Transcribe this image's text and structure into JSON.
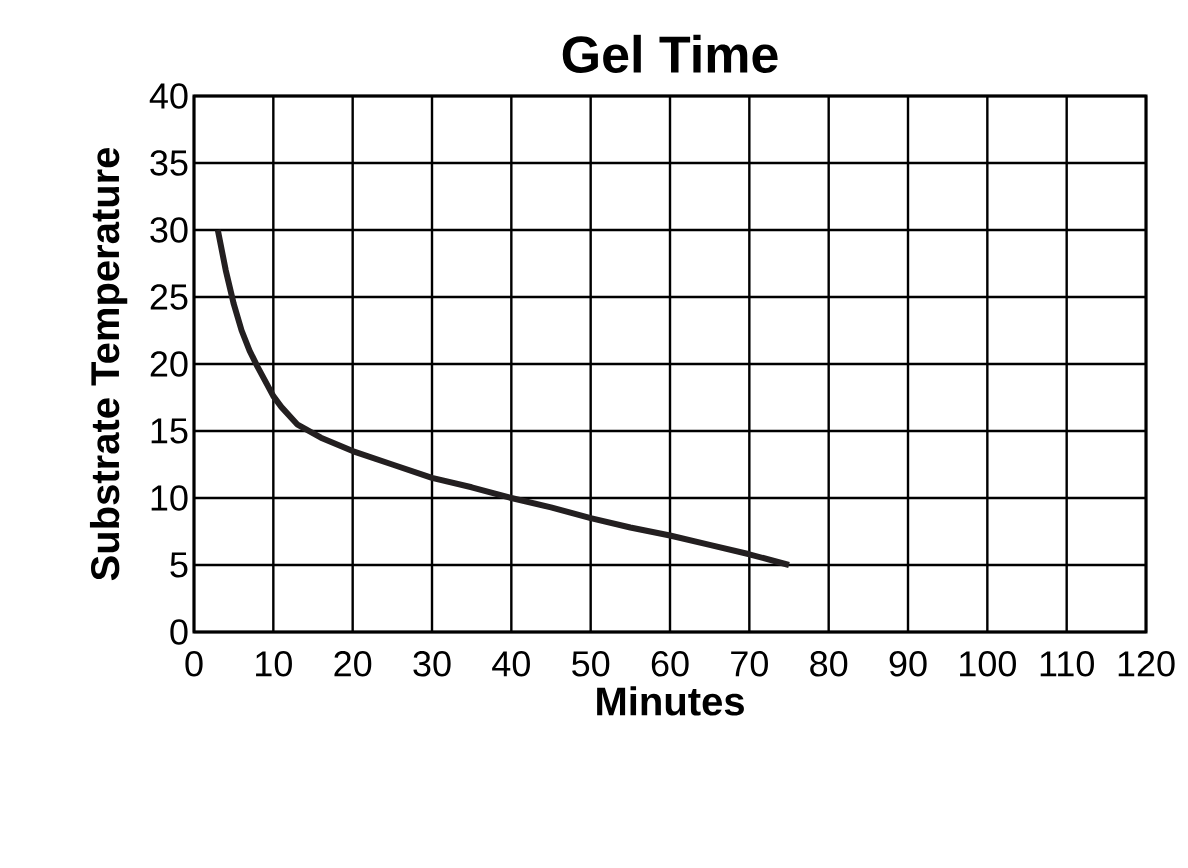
{
  "chart_data": {
    "type": "line",
    "title": "Gel Time",
    "xlabel": "Minutes",
    "ylabel": "Substrate Temperature",
    "x": [
      3,
      4,
      5,
      6,
      7,
      8,
      9,
      10,
      11,
      13,
      16,
      20,
      25,
      30,
      35,
      40,
      45,
      50,
      55,
      60,
      65,
      70,
      75
    ],
    "series": [
      {
        "color": "#231f20",
        "values": [
          30,
          27,
          24.5,
          22.5,
          21,
          19.8,
          18.7,
          17.6,
          16.8,
          15.5,
          14.5,
          13.5,
          12.5,
          11.5,
          10.8,
          10,
          9.3,
          8.5,
          7.8,
          7.2,
          6.5,
          5.8,
          5
        ]
      }
    ],
    "xlim": [
      0,
      120
    ],
    "ylim": [
      0,
      40
    ],
    "xticks": [
      0,
      10,
      20,
      30,
      40,
      50,
      60,
      70,
      80,
      90,
      100,
      110,
      120
    ],
    "yticks": [
      0,
      5,
      10,
      15,
      20,
      25,
      30,
      35,
      40
    ],
    "grid": true,
    "marker": "none",
    "line_style": "solid"
  }
}
